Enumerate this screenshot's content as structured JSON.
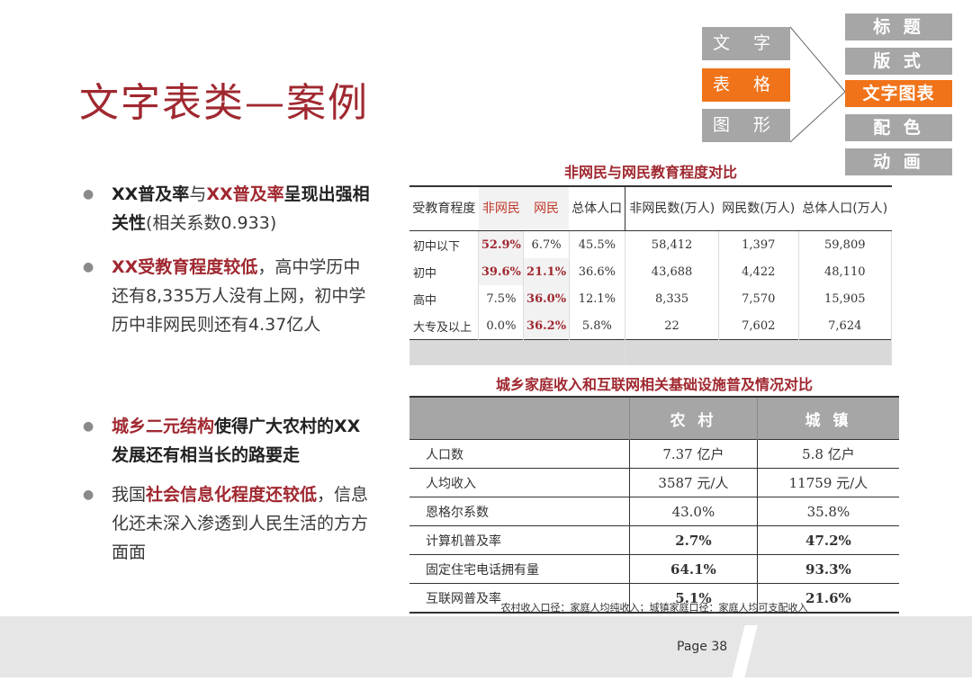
{
  "title": "文字表类—案例",
  "nav": {
    "left": [
      "文 字",
      "表 格",
      "图 形"
    ],
    "right": [
      "标 题",
      "版 式",
      "文字图表",
      "配 色",
      "动 画"
    ]
  },
  "bullets": {
    "b1": {
      "a": "XX普及率",
      "b": "与",
      "c": "XX普及率",
      "d": "呈现出强相关性",
      "e": "(相关系数0.933)"
    },
    "b2": {
      "a": "XX受教育程度较低",
      "b": "，高中学历中还有8,335万人没有上网，初中学历中非网民则还有4.37亿人"
    },
    "b3": {
      "a": "城乡二元结构",
      "b": "使得广大农村的XX发展还有相当长的路要走"
    },
    "b4": {
      "a": "我国",
      "b": "社会信息化程度还较低",
      "c": "，信息化还未深入渗透到人民生活的方方面面"
    }
  },
  "table1": {
    "caption": "非网民与网民教育程度对比",
    "headers": [
      "受教育程度",
      "非网民",
      "网民",
      "总体人口",
      "非网民数(万人)",
      "网民数(万人)",
      "总体人口(万人)"
    ],
    "rows": [
      [
        "初中以下",
        "52.9%",
        "6.7%",
        "45.5%",
        "58,412",
        "1,397",
        "59,809"
      ],
      [
        "初中",
        "39.6%",
        "21.1%",
        "36.6%",
        "43,688",
        "4,422",
        "48,110"
      ],
      [
        "高中",
        "7.5%",
        "36.0%",
        "12.1%",
        "8,335",
        "7,570",
        "15,905"
      ],
      [
        "大专及以上",
        "0.0%",
        "36.2%",
        "5.8%",
        "22",
        "7,602",
        "7,624"
      ]
    ]
  },
  "table2": {
    "caption": "城乡家庭收入和互联网相关基础设施普及情况对比",
    "headers": [
      "",
      "农 村",
      "城 镇"
    ],
    "rows": [
      [
        "人口数",
        "7.37 亿户",
        "5.8 亿户"
      ],
      [
        "人均收入",
        "3587 元/人",
        "11759 元/人"
      ],
      [
        "恩格尔系数",
        "43.0%",
        "35.8%"
      ],
      [
        "计算机普及率",
        "2.7%",
        "47.2%"
      ],
      [
        "固定住宅电话拥有量",
        "64.1%",
        "93.3%"
      ],
      [
        "互联网普及率",
        "5.1%",
        "21.6%"
      ]
    ],
    "note": "农村收入口径：家庭人均纯收入；城镇家庭口径：家庭人均可支配收入"
  },
  "page_label": "Page 38",
  "colors": {
    "accent_red": "#a02830",
    "orange": "#f07319",
    "gray": "#a6a6a6"
  }
}
